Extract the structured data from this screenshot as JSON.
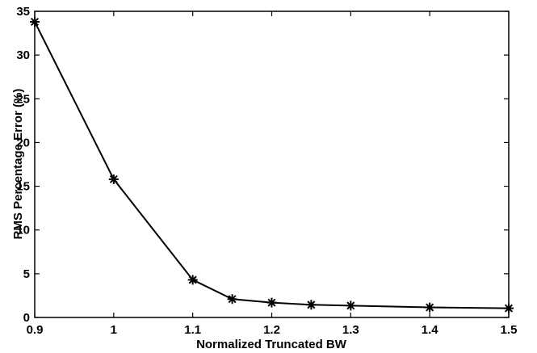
{
  "chart_data": {
    "type": "line",
    "title": "",
    "xlabel": "Normalized Truncated BW",
    "ylabel": "RMS Percentage Error (%)",
    "xlim": [
      0.9,
      1.5
    ],
    "ylim": [
      0,
      35
    ],
    "xticks": [
      0.9,
      1,
      1.1,
      1.2,
      1.3,
      1.4,
      1.5
    ],
    "xtick_labels": [
      "0.9",
      "1",
      "1.1",
      "1.2",
      "1.3",
      "1.4",
      "1.5"
    ],
    "yticks": [
      0,
      5,
      10,
      15,
      20,
      25,
      30,
      35
    ],
    "ytick_labels": [
      "0",
      "5",
      "10",
      "15",
      "20",
      "25",
      "30",
      "35"
    ],
    "grid": false,
    "marker": "asterisk",
    "line_color": "#000000",
    "series": [
      {
        "x": [
          0.9,
          1.0,
          1.1,
          1.15,
          1.2,
          1.25,
          1.3,
          1.4,
          1.5
        ],
        "values": [
          33.8,
          15.8,
          4.3,
          2.1,
          1.7,
          1.45,
          1.35,
          1.15,
          1.05
        ]
      }
    ]
  }
}
